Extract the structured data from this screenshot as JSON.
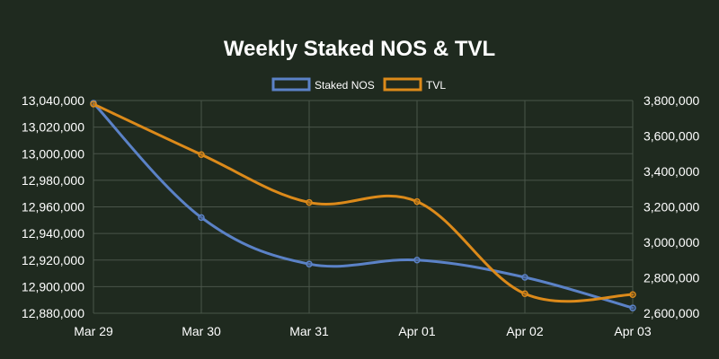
{
  "chart_data": {
    "type": "line",
    "title": "Weekly Staked NOS & TVL",
    "categories": [
      "Mar 29",
      "Mar 30",
      "Mar 31",
      "Apr 01",
      "Apr 02",
      "Apr 03"
    ],
    "series": [
      {
        "name": "Staked NOS",
        "axis": "left",
        "color": "#5b82c7",
        "values": [
          13038000,
          12952000,
          12917000,
          12920000,
          12907000,
          12884000
        ]
      },
      {
        "name": "TVL",
        "axis": "right",
        "color": "#dc8a1a",
        "values": [
          3780000,
          3495000,
          3225000,
          3230000,
          2710000,
          2705000
        ]
      }
    ],
    "y_left": {
      "min": 12880000,
      "max": 13040000,
      "ticks": [
        "12,880,000",
        "12,900,000",
        "12,920,000",
        "12,940,000",
        "12,960,000",
        "12,980,000",
        "13,000,000",
        "13,020,000",
        "13,040,000"
      ]
    },
    "y_right": {
      "min": 2600000,
      "max": 3800000,
      "ticks": [
        "2,600,000",
        "2,800,000",
        "3,000,000",
        "3,200,000",
        "3,400,000",
        "3,600,000",
        "3,800,000"
      ]
    },
    "grid": true,
    "legend_position": "top-center"
  }
}
